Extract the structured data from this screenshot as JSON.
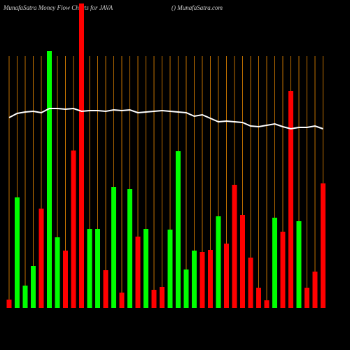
{
  "chart_data": {
    "type": "bar",
    "title": "MunafaSatra  Money Flow  Charts for JAVA",
    "subtitle": "() MunafaSatra.com",
    "categories": [
      null,
      null,
      null,
      null,
      null,
      null,
      null,
      null,
      null,
      null,
      null,
      null,
      null,
      null,
      null,
      null,
      null,
      null,
      null,
      null,
      null,
      null,
      null,
      null,
      null,
      null,
      null,
      null,
      null,
      null,
      null,
      null,
      null,
      null,
      null,
      null,
      null,
      null,
      null,
      null
    ],
    "grid_color": "#c07000",
    "series": [
      {
        "type": "bar",
        "values": [
          12,
          158,
          32,
          60,
          142,
          367,
          101,
          82,
          225,
          435,
          113,
          113,
          54,
          173,
          22,
          170,
          102,
          113,
          26,
          30,
          112,
          224,
          55,
          82,
          80,
          83,
          131,
          92,
          176,
          133,
          72,
          29,
          11,
          129,
          109,
          310,
          124,
          29,
          52,
          178
        ],
        "colors": [
          "#ff0000",
          "#00ff00",
          "#00ff00",
          "#00ff00",
          "#ff0000",
          "#00ff00",
          "#00ff00",
          "#ff0000",
          "#ff0000",
          "#ff0000",
          "#00ff00",
          "#00ff00",
          "#ff0000",
          "#00ff00",
          "#ff0000",
          "#00ff00",
          "#ff0000",
          "#00ff00",
          "#ff0000",
          "#ff0000",
          "#00ff00",
          "#00ff00",
          "#00ff00",
          "#00ff00",
          "#ff0000",
          "#ff0000",
          "#00ff00",
          "#ff0000",
          "#ff0000",
          "#ff0000",
          "#ff0000",
          "#ff0000",
          "#ff0000",
          "#00ff00",
          "#ff0000",
          "#ff0000",
          "#00ff00",
          "#ff0000",
          "#ff0000",
          "#ff0000"
        ]
      },
      {
        "type": "line",
        "color": "#ffffff",
        "values": [
          272,
          278,
          280,
          281,
          279,
          285,
          285,
          284,
          285,
          281,
          282,
          282,
          281,
          283,
          282,
          283,
          279,
          280,
          281,
          282,
          281,
          280,
          279,
          274,
          276,
          271,
          266,
          267,
          266,
          265,
          260,
          259,
          261,
          263,
          259,
          256,
          258,
          258,
          260,
          256
        ]
      }
    ]
  }
}
